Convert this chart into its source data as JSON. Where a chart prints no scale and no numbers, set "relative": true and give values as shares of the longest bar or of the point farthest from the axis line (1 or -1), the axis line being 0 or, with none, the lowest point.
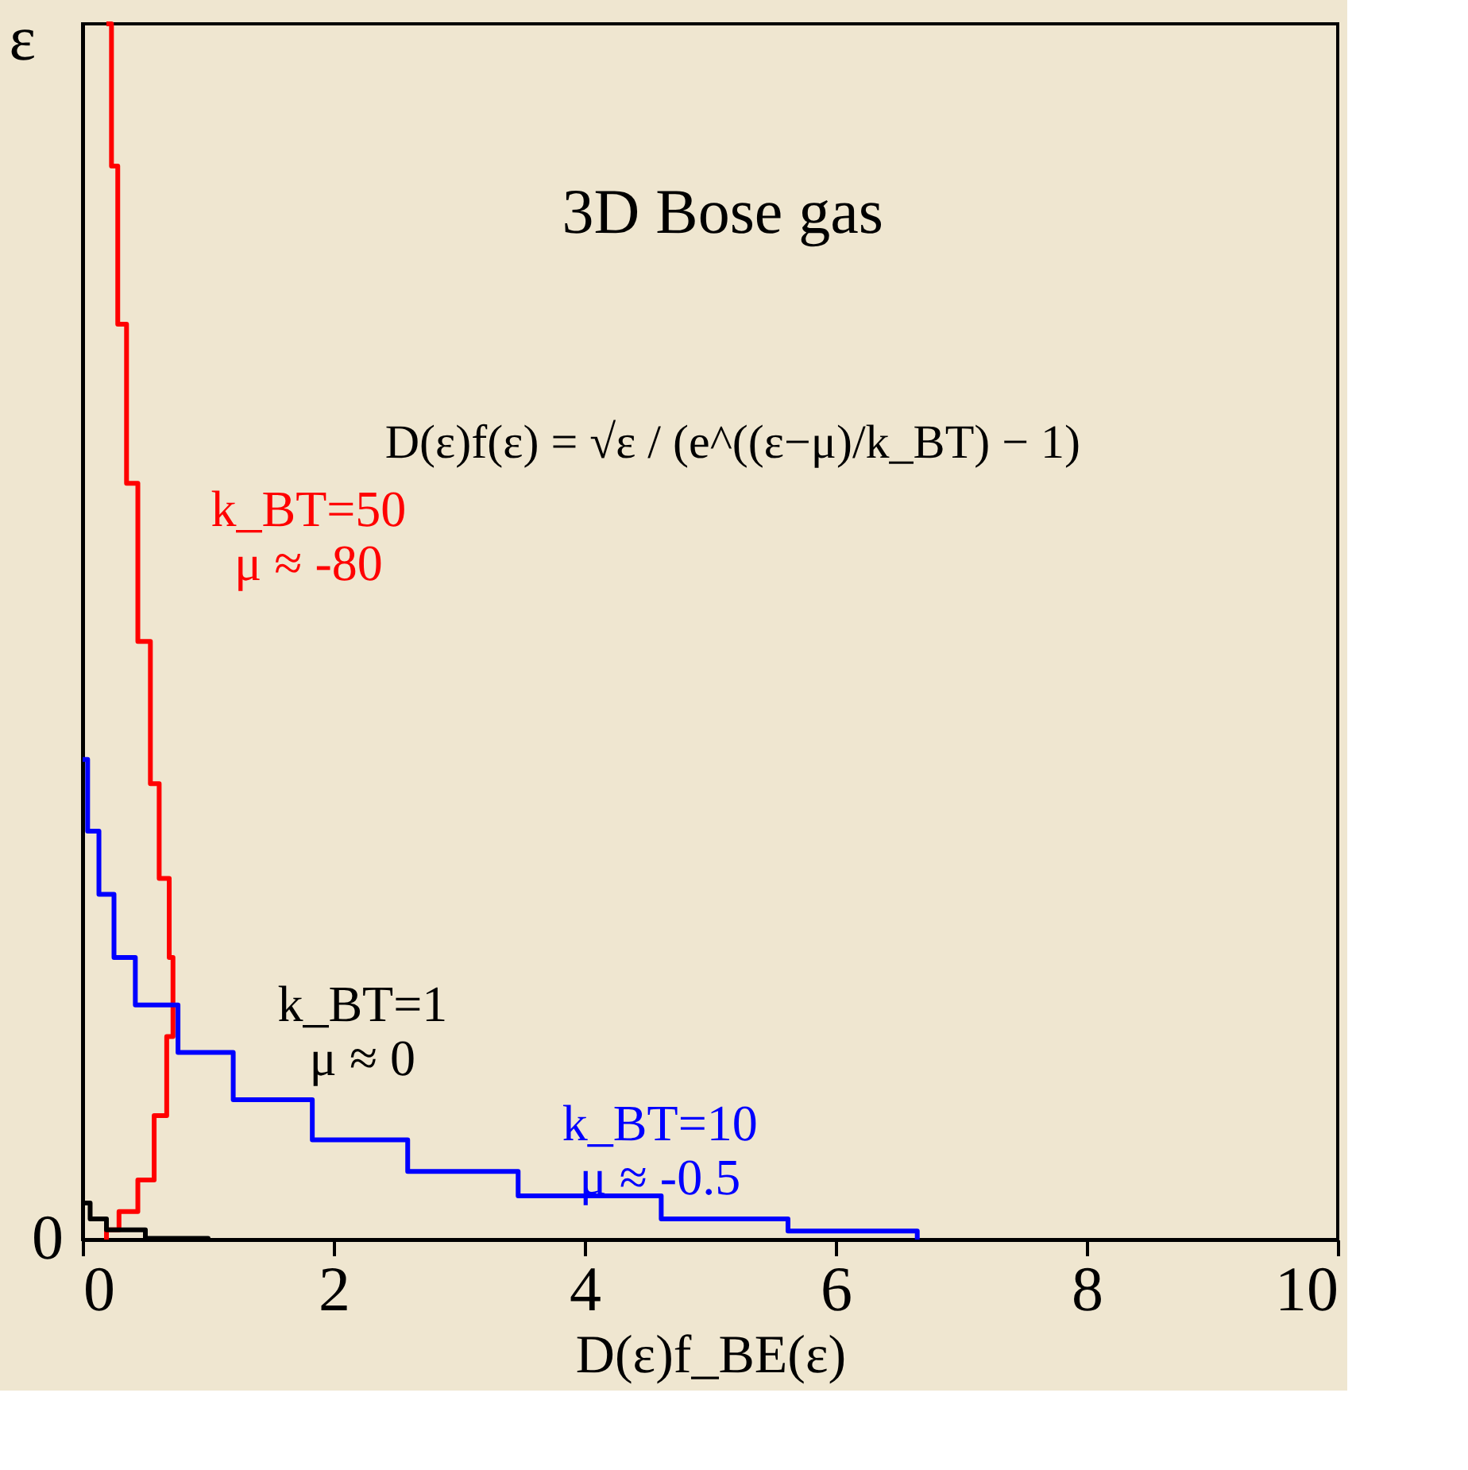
{
  "chart_data": {
    "type": "step",
    "xlabel": "D(ε)f_BE(ε)",
    "ylabel": "ε",
    "relative": true,
    "xlim": [
      0,
      10
    ],
    "xticks": [
      0,
      2,
      4,
      6,
      8,
      10
    ],
    "grid": false,
    "series": [
      {
        "name": "k_BT=50\nμ ≈ -80",
        "color": "#ff0000",
        "x": [
          0.19,
          0.23,
          0.28,
          0.35,
          0.44,
          0.54,
          0.61,
          0.69,
          0.72,
          0.67,
          0.57,
          0.44,
          0.29,
          0.19
        ],
        "values": [
          1.0,
          0.883,
          0.753,
          0.622,
          0.492,
          0.375,
          0.297,
          0.232,
          0.167,
          0.102,
          0.049,
          0.023,
          0.008,
          0
        ]
      },
      {
        "name": "k_BT=10\nμ ≈ -0.5",
        "color": "#0000ff",
        "x": [
          0,
          0.04,
          0.13,
          0.25,
          0.42,
          0.76,
          1.2,
          1.83,
          2.59,
          3.47,
          4.61,
          5.62,
          6.65
        ],
        "values": [
          0.395,
          0.336,
          0.284,
          0.232,
          0.193,
          0.154,
          0.115,
          0.082,
          0.056,
          0.036,
          0.017,
          0.007,
          0
        ]
      },
      {
        "name": "k_BT=1\nμ ≈ 0",
        "color": "#000000",
        "x": [
          0,
          0.06,
          0.19,
          0.5,
          1.0
        ],
        "values": [
          0.03,
          0.017,
          0.008,
          0.001,
          0
        ]
      }
    ],
    "annotations": [
      "3D Bose gas",
      "D(ε)f(ε) = √ε / (e^((ε−μ)/k_BT) − 1)",
      "0"
    ]
  }
}
